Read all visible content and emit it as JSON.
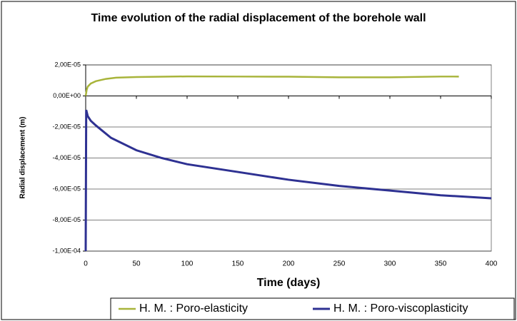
{
  "chart_data": {
    "type": "line",
    "title": "Time evolution of the radial displacement of the borehole wall",
    "x_label": "Time (days)",
    "y_label": "Radial displacement (m)",
    "xlim": [
      0,
      400
    ],
    "xticks": [
      0,
      50,
      100,
      150,
      200,
      250,
      300,
      350,
      400
    ],
    "ylim": [
      -0.0001,
      2e-05
    ],
    "yticks": [
      {
        "value": 2e-05,
        "label": "2,00E-05"
      },
      {
        "value": 0,
        "label": "0,00E+00"
      },
      {
        "value": -2e-05,
        "label": "-2,00E-05"
      },
      {
        "value": -4e-05,
        "label": "-4,00E-05"
      },
      {
        "value": -6e-05,
        "label": "-6,00E-05"
      },
      {
        "value": -8e-05,
        "label": "-8,00E-05"
      },
      {
        "value": -0.0001,
        "label": "-1,00E-04"
      }
    ],
    "grid": true,
    "legend": "bottom",
    "series": [
      {
        "name": "H. M. : Poro-elasticity",
        "color": "#a8b43a",
        "x": [
          0,
          1,
          2,
          5,
          10,
          20,
          30,
          50,
          100,
          150,
          200,
          250,
          300,
          350,
          368
        ],
        "values": [
          0,
          4e-06,
          6e-06,
          8e-06,
          9.5e-06,
          1.1e-05,
          1.18e-05,
          1.22e-05,
          1.26e-05,
          1.25e-05,
          1.24e-05,
          1.2e-05,
          1.2e-05,
          1.25e-05,
          1.25e-05
        ]
      },
      {
        "name": "H. M. : Poro-viscoplasticity",
        "color": "#2e3192",
        "x": [
          0,
          0.5,
          2,
          5,
          10,
          25,
          50,
          75,
          100,
          150,
          200,
          250,
          300,
          350,
          400
        ],
        "values": [
          -0.0001,
          -9e-06,
          -1.3e-05,
          -1.6e-05,
          -1.9e-05,
          -2.7e-05,
          -3.5e-05,
          -4e-05,
          -4.4e-05,
          -4.9e-05,
          -5.4e-05,
          -5.8e-05,
          -6.1e-05,
          -6.4e-05,
          -6.6e-05
        ]
      }
    ]
  }
}
